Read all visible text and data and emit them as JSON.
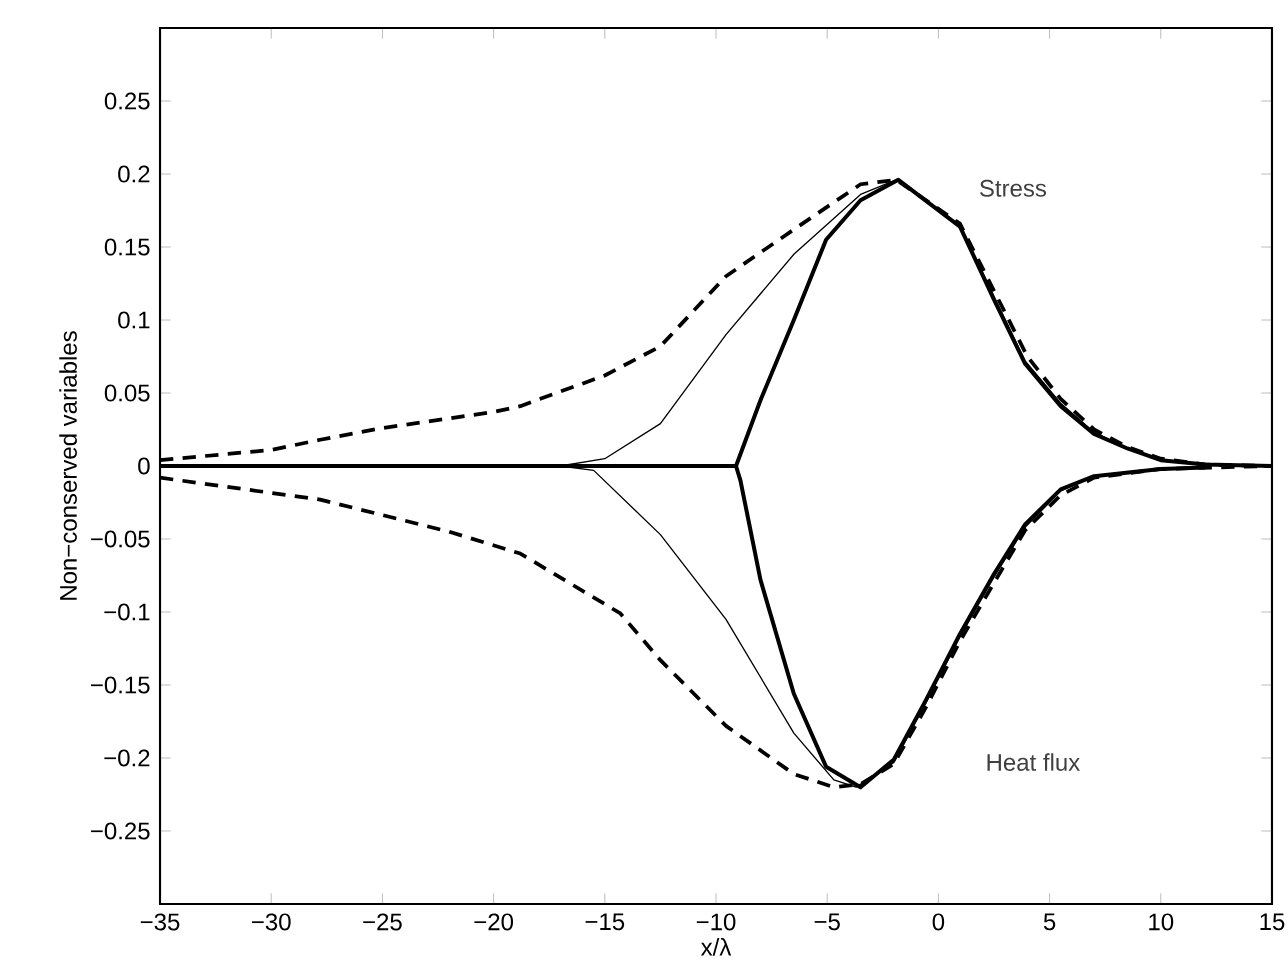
{
  "chart_data": {
    "type": "line",
    "xlabel": "x/λ",
    "ylabel": "Non−conserved variables",
    "xlim": [
      -35,
      15
    ],
    "ylim": [
      -0.3,
      0.3
    ],
    "xticks": [
      {
        "value": -35,
        "label": "−35"
      },
      {
        "value": -30,
        "label": "−30"
      },
      {
        "value": -25,
        "label": "−25"
      },
      {
        "value": -20,
        "label": "−20"
      },
      {
        "value": -15,
        "label": "−15"
      },
      {
        "value": -10,
        "label": "−10"
      },
      {
        "value": -5,
        "label": "−5"
      },
      0,
      5,
      10,
      15
    ],
    "yticks": [
      {
        "value": -0.25,
        "label": "−0.25"
      },
      {
        "value": -0.2,
        "label": "−0.2"
      },
      {
        "value": -0.15,
        "label": "−0.15"
      },
      {
        "value": -0.1,
        "label": "−0.1"
      },
      {
        "value": -0.05,
        "label": "−0.05"
      },
      0,
      0.05,
      0.1,
      0.15,
      0.2,
      0.25
    ],
    "grid": false,
    "annotations": [
      "Stress",
      "Heat flux"
    ],
    "series": [
      {
        "color": "#000000",
        "line_style": "dashed",
        "x": [
          -35,
          -30,
          -27.8,
          -25,
          -20,
          -18.8,
          -15,
          -12.5,
          -9.55,
          -6.5,
          -3.5,
          -1.9,
          0.97,
          2.5,
          4,
          5.5,
          7,
          8.5,
          10,
          12,
          15
        ],
        "values": [
          0.004,
          0.011,
          0.018,
          0.026,
          0.037,
          0.041,
          0.062,
          0.082,
          0.13,
          0.162,
          0.193,
          0.196,
          0.166,
          0.12,
          0.075,
          0.046,
          0.025,
          0.013,
          0.005,
          0.001,
          0
        ]
      },
      {
        "color": "#000000",
        "line_style": "solid",
        "x": [
          -35,
          -17,
          -15,
          -12.5,
          -9.55,
          -6.5,
          -3.5,
          -1.9,
          0.97,
          2.5,
          3.9,
          5.5,
          7,
          8.5,
          10,
          12,
          15
        ],
        "values": [
          0,
          0,
          0.005,
          0.029,
          0.09,
          0.145,
          0.186,
          0.196,
          0.165,
          0.116,
          0.072,
          0.043,
          0.023,
          0.012,
          0.004,
          0.001,
          0
        ]
      },
      {
        "color": "#000000",
        "line_style": "solid",
        "x": [
          -35,
          -9.1,
          -8,
          -6.5,
          -5.05,
          -3.5,
          -1.8,
          0.97,
          2.5,
          3.9,
          5.5,
          7,
          8.5,
          10,
          12,
          15
        ],
        "values": [
          0,
          0,
          0.045,
          0.1,
          0.155,
          0.182,
          0.196,
          0.164,
          0.114,
          0.07,
          0.041,
          0.022,
          0.012,
          0.004,
          0.001,
          0
        ]
      },
      {
        "color": "#000000",
        "line_style": "dashed",
        "x": [
          -35,
          -27.8,
          -22,
          -18.8,
          -14.3,
          -12.5,
          -9.55,
          -6.5,
          -4.7,
          -3.5,
          -2,
          -0.55,
          0.97,
          2.5,
          3.9,
          5.5,
          7,
          10,
          15
        ],
        "values": [
          -0.008,
          -0.023,
          -0.045,
          -0.06,
          -0.101,
          -0.133,
          -0.178,
          -0.211,
          -0.22,
          -0.218,
          -0.204,
          -0.165,
          -0.12,
          -0.08,
          -0.044,
          -0.02,
          -0.008,
          -0.002,
          0
        ]
      },
      {
        "color": "#000000",
        "line_style": "solid",
        "x": [
          -17,
          -15.5,
          -12.5,
          -9.55,
          -6.5,
          -4.7,
          -3.7,
          -2,
          -0.55,
          0.97,
          2.5,
          3.9,
          5.5,
          7,
          10,
          12
        ],
        "values": [
          0,
          -0.003,
          -0.047,
          -0.105,
          -0.183,
          -0.215,
          -0.22,
          -0.203,
          -0.162,
          -0.117,
          -0.076,
          -0.042,
          -0.017,
          -0.007,
          -0.002,
          -0.001
        ]
      },
      {
        "color": "#000000",
        "line_style": "solid",
        "x": [
          -9.1,
          -8.9,
          -8,
          -6.5,
          -5.05,
          -3.5,
          -2,
          -0.55,
          0.97,
          2.5,
          3.9,
          5.5,
          7,
          10,
          12
        ],
        "values": [
          0,
          -0.01,
          -0.078,
          -0.156,
          -0.206,
          -0.22,
          -0.201,
          -0.16,
          -0.115,
          -0.074,
          -0.04,
          -0.016,
          -0.007,
          -0.002,
          -0.001
        ]
      }
    ]
  }
}
